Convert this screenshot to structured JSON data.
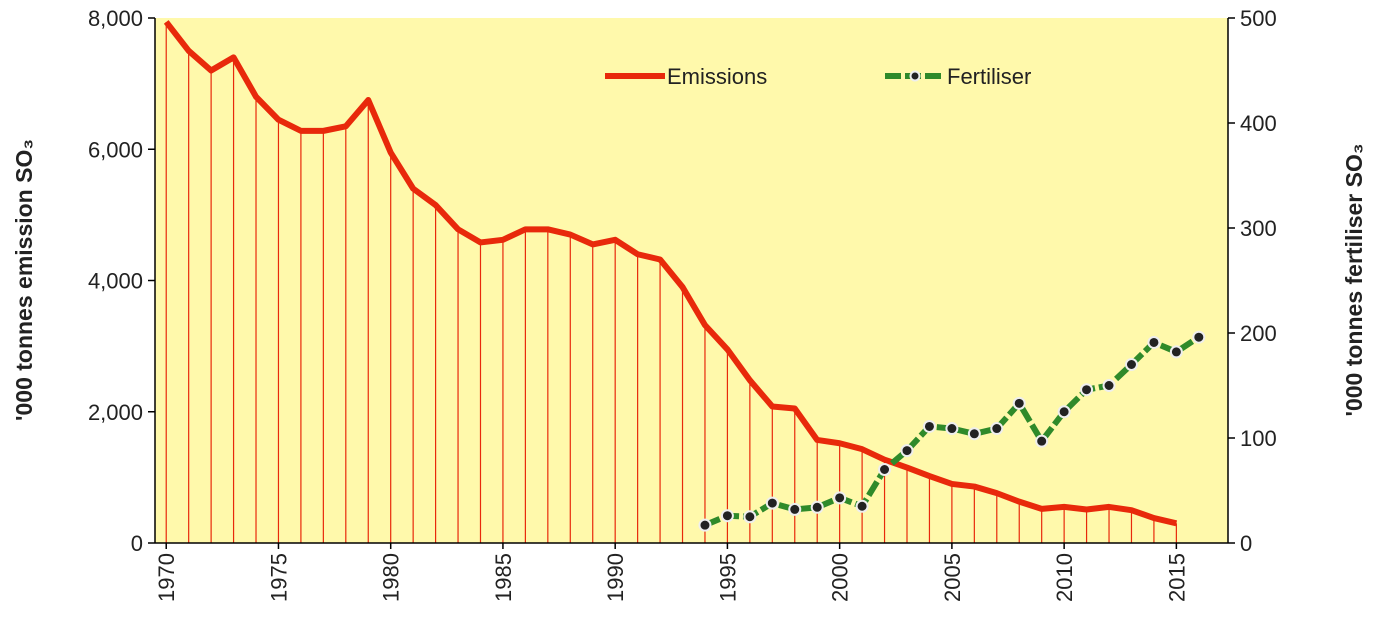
{
  "chart_data": {
    "type": "line",
    "y_label": "'000 tonnes emission SO₃",
    "y2_label": "'000 tonnes fertiliser SO₃",
    "x": [
      1970,
      1971,
      1972,
      1973,
      1974,
      1975,
      1976,
      1977,
      1978,
      1979,
      1980,
      1981,
      1982,
      1983,
      1984,
      1985,
      1986,
      1987,
      1988,
      1989,
      1990,
      1991,
      1992,
      1993,
      1994,
      1995,
      1996,
      1997,
      1998,
      1999,
      2000,
      2001,
      2002,
      2003,
      2004,
      2005,
      2006,
      2007,
      2008,
      2009,
      2010,
      2011,
      2012,
      2013,
      2014,
      2015,
      2016
    ],
    "xlim": [
      1969.5,
      2017.3
    ],
    "xticks": [
      1970,
      1975,
      1980,
      1985,
      1990,
      1995,
      2000,
      2005,
      2010,
      2015
    ],
    "ylim": [
      0,
      8000
    ],
    "yticks": [
      0,
      {
        "value": 2000,
        "label": "2,000"
      },
      {
        "value": 4000,
        "label": "4,000"
      },
      {
        "value": 6000,
        "label": "6,000"
      },
      {
        "value": 8000,
        "label": "8,000"
      }
    ],
    "y2lim": [
      0,
      500
    ],
    "y2ticks": [
      0,
      100,
      200,
      300,
      400,
      500
    ],
    "legend": "top",
    "series": [
      {
        "name": "Emissions",
        "color": "#e8290b",
        "drop_lines": true,
        "values": [
          7940,
          7500,
          7200,
          7400,
          6800,
          6450,
          6280,
          6280,
          6350,
          6750,
          5950,
          5400,
          5150,
          4780,
          4580,
          4620,
          4780,
          4780,
          4700,
          4550,
          4620,
          4400,
          4320,
          3900,
          3320,
          2950,
          2480,
          2080,
          2050,
          1570,
          1520,
          1430,
          1270,
          1150,
          1020,
          900,
          860,
          760,
          630,
          520,
          550,
          510,
          550,
          500,
          380,
          300,
          null
        ]
      },
      {
        "name": "Fertiliser",
        "color": "#2f8a2a",
        "axis": "y2",
        "markers": true,
        "values": [
          null,
          null,
          null,
          null,
          null,
          null,
          null,
          null,
          null,
          null,
          null,
          null,
          null,
          null,
          null,
          null,
          null,
          null,
          null,
          null,
          null,
          null,
          null,
          null,
          17,
          26,
          25,
          38,
          32,
          34,
          43,
          35,
          70,
          88,
          111,
          109,
          104,
          109,
          133,
          97,
          125,
          146,
          150,
          170,
          191,
          182,
          196
        ]
      }
    ]
  }
}
